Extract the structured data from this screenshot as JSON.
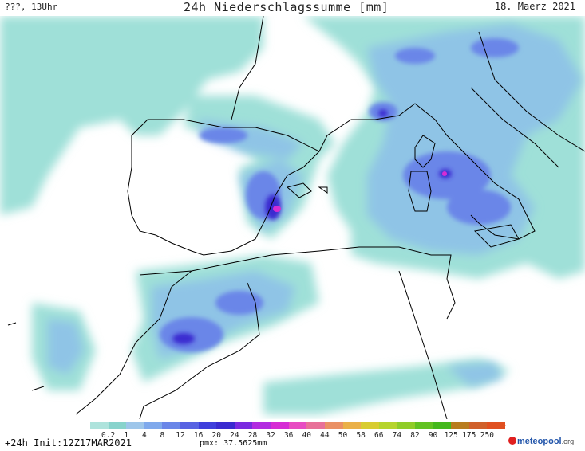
{
  "header": {
    "left": "???, 13Uhr",
    "title": "24h Niederschlagssumme [mm]",
    "date": "18. Maerz 2021"
  },
  "legend": {
    "ticks": [
      "0.2",
      "1",
      "4",
      "8",
      "12",
      "16",
      "20",
      "24",
      "28",
      "32",
      "36",
      "40",
      "44",
      "50",
      "58",
      "66",
      "74",
      "82",
      "90",
      "125",
      "175",
      "250"
    ],
    "colors": [
      "#aee3dc",
      "#88d3cc",
      "#9ec6ea",
      "#7fa9ec",
      "#6a86e8",
      "#5863e2",
      "#3f3fdc",
      "#3a2bd0",
      "#7a2be0",
      "#b22ce0",
      "#d62cd4",
      "#e84bc2",
      "#e87098",
      "#ea9064",
      "#eab048",
      "#d8cc30",
      "#b6d42c",
      "#90cc28",
      "#62c222",
      "#44b81c",
      "#b87c1e",
      "#d0602a",
      "#e05020"
    ]
  },
  "footer": {
    "run": "+24h Init:12Z17MAR2021",
    "pmx": "pmx: 37.5625mm",
    "logo_main": "meteopool",
    "logo_suffix": ".org"
  },
  "map": {
    "region": "Western Mediterranean",
    "max_precip_mm": 37.5625,
    "colors": {
      "water_light": "#9fe0d8",
      "light": "#8fc4e6",
      "medium": "#6a86e8",
      "heavy": "#3a2bd0",
      "extreme": "#d62cd4",
      "border": "#000000"
    }
  }
}
